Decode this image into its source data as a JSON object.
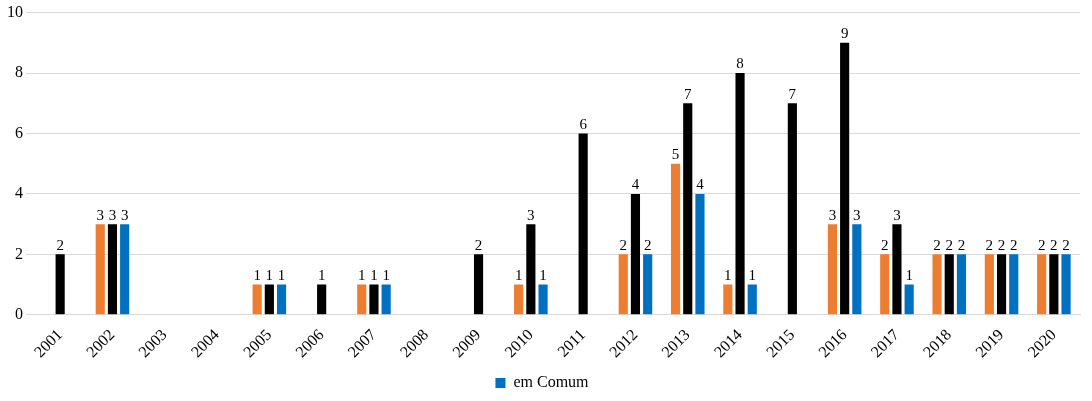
{
  "chart_data": {
    "type": "bar",
    "categories": [
      "2001",
      "2002",
      "2003",
      "2004",
      "2005",
      "2006",
      "2007",
      "2008",
      "2009",
      "2010",
      "2011",
      "2012",
      "2013",
      "2014",
      "2015",
      "2016",
      "2017",
      "2018",
      "2019",
      "2020"
    ],
    "series": [
      {
        "color": "#ed7d31",
        "values": [
          null,
          3,
          null,
          null,
          1,
          null,
          1,
          null,
          null,
          1,
          null,
          2,
          5,
          1,
          null,
          3,
          2,
          2,
          2,
          2
        ]
      },
      {
        "color": "#000000",
        "values": [
          2,
          3,
          null,
          null,
          1,
          1,
          1,
          null,
          2,
          3,
          6,
          4,
          7,
          8,
          7,
          9,
          3,
          2,
          2,
          2
        ]
      },
      {
        "name": "em Comum",
        "color": "#0070c0",
        "values": [
          null,
          3,
          null,
          null,
          1,
          null,
          1,
          null,
          null,
          1,
          null,
          2,
          4,
          1,
          null,
          3,
          1,
          2,
          2,
          2
        ]
      }
    ],
    "ylim": [
      0,
      10
    ],
    "yticks": [
      0,
      2,
      4,
      6,
      8,
      10
    ],
    "grid": "y",
    "legend": "bottom",
    "data_labels": true
  }
}
